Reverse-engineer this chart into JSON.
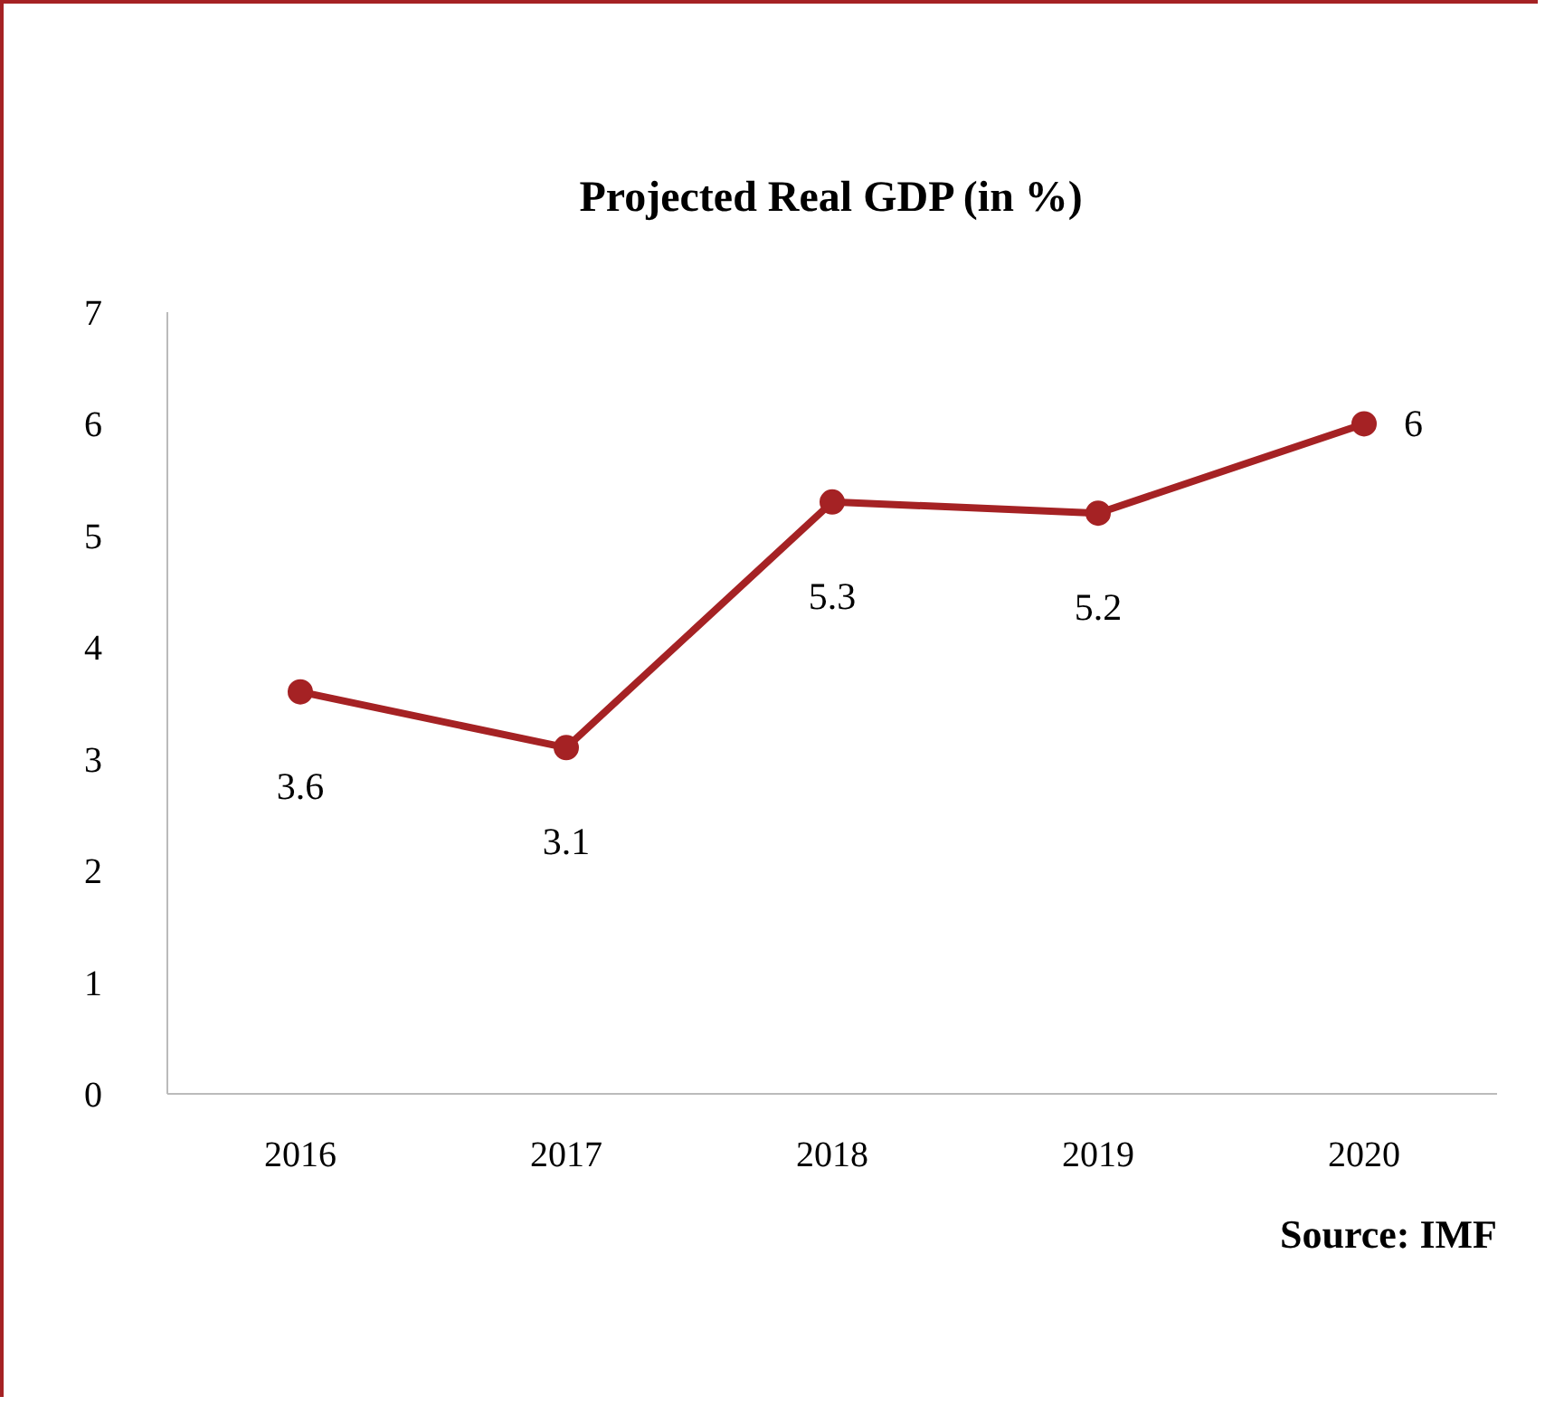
{
  "chart_data": {
    "type": "line",
    "title": "Projected Real GDP (in %)",
    "categories": [
      "2016",
      "2017",
      "2018",
      "2019",
      "2020"
    ],
    "series": [
      {
        "color": "#a52224",
        "values": [
          3.6,
          3.1,
          5.3,
          5.2,
          6
        ]
      }
    ],
    "ylim": [
      0,
      7
    ],
    "yticks": [
      0,
      1,
      2,
      3,
      4,
      5,
      6,
      7
    ],
    "grid": false,
    "marker": "circle",
    "line_style": "solid",
    "data_labels": true,
    "annotations": [
      "Source: IMF"
    ]
  }
}
